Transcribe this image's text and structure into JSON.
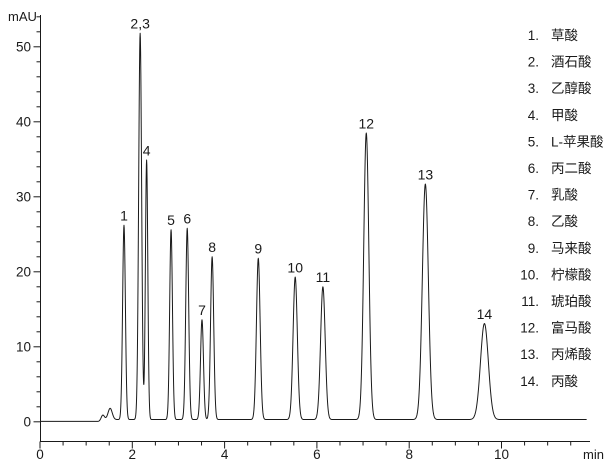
{
  "chart_data": {
    "type": "line",
    "kind": "chromatogram",
    "title": "",
    "ylabel": "mAU",
    "xlabel": "min",
    "x_range_min": [
      0,
      11.85
    ],
    "y_range_mAU": [
      -2.5,
      54
    ],
    "x_major_ticks": [
      0,
      2,
      4,
      6,
      8,
      10
    ],
    "x_minor_step_min": 0.5,
    "y_major_ticks": [
      0,
      10,
      20,
      30,
      40,
      50
    ],
    "y_minor_step_mAU": 2,
    "grid": "off",
    "legend_position": "right",
    "trace_color": "#1a1a1a",
    "baseline_mAU": 0.3,
    "baseline_disturbances": [
      {
        "rt_min": 1.36,
        "height_mAU": 0.7,
        "sigma_min": 0.035
      },
      {
        "rt_min": 1.52,
        "height_mAU": 1.5,
        "sigma_min": 0.045
      }
    ],
    "peaks": [
      {
        "label": "1",
        "rt_min": 1.82,
        "height_mAU": 25.9,
        "sigma_min": 0.03
      },
      {
        "label": "2,3",
        "rt_min": 2.17,
        "height_mAU": 51.5,
        "sigma_min": 0.032
      },
      {
        "label": "4",
        "rt_min": 2.31,
        "height_mAU": 34.6,
        "sigma_min": 0.026
      },
      {
        "label": "5",
        "rt_min": 2.84,
        "height_mAU": 25.3,
        "sigma_min": 0.03
      },
      {
        "label": "6",
        "rt_min": 3.19,
        "height_mAU": 25.5,
        "sigma_min": 0.032
      },
      {
        "label": "7",
        "rt_min": 3.51,
        "height_mAU": 13.3,
        "sigma_min": 0.032
      },
      {
        "label": "8",
        "rt_min": 3.73,
        "height_mAU": 21.7,
        "sigma_min": 0.034
      },
      {
        "label": "9",
        "rt_min": 4.73,
        "height_mAU": 21.5,
        "sigma_min": 0.04
      },
      {
        "label": "10",
        "rt_min": 5.53,
        "height_mAU": 19.0,
        "sigma_min": 0.046
      },
      {
        "label": "11",
        "rt_min": 6.13,
        "height_mAU": 17.7,
        "sigma_min": 0.05
      },
      {
        "label": "12",
        "rt_min": 7.07,
        "height_mAU": 38.2,
        "sigma_min": 0.055
      },
      {
        "label": "13",
        "rt_min": 8.35,
        "height_mAU": 31.4,
        "sigma_min": 0.065
      },
      {
        "label": "14",
        "rt_min": 9.63,
        "height_mAU": 12.8,
        "sigma_min": 0.085
      }
    ],
    "legend": [
      {
        "num": "1.",
        "name": "草酸"
      },
      {
        "num": "2.",
        "name": "酒石酸"
      },
      {
        "num": "3.",
        "name": "乙醇酸"
      },
      {
        "num": "4.",
        "name": "甲酸"
      },
      {
        "num": "5.",
        "name": "L-苹果酸"
      },
      {
        "num": "6.",
        "name": "丙二酸"
      },
      {
        "num": "7.",
        "name": "乳酸"
      },
      {
        "num": "8.",
        "name": "乙酸"
      },
      {
        "num": "9.",
        "name": "马来酸"
      },
      {
        "num": "10.",
        "name": "柠檬酸"
      },
      {
        "num": "11.",
        "name": "琥珀酸"
      },
      {
        "num": "12.",
        "name": "富马酸"
      },
      {
        "num": "13.",
        "name": "丙烯酸"
      },
      {
        "num": "14.",
        "name": "丙酸"
      }
    ]
  }
}
